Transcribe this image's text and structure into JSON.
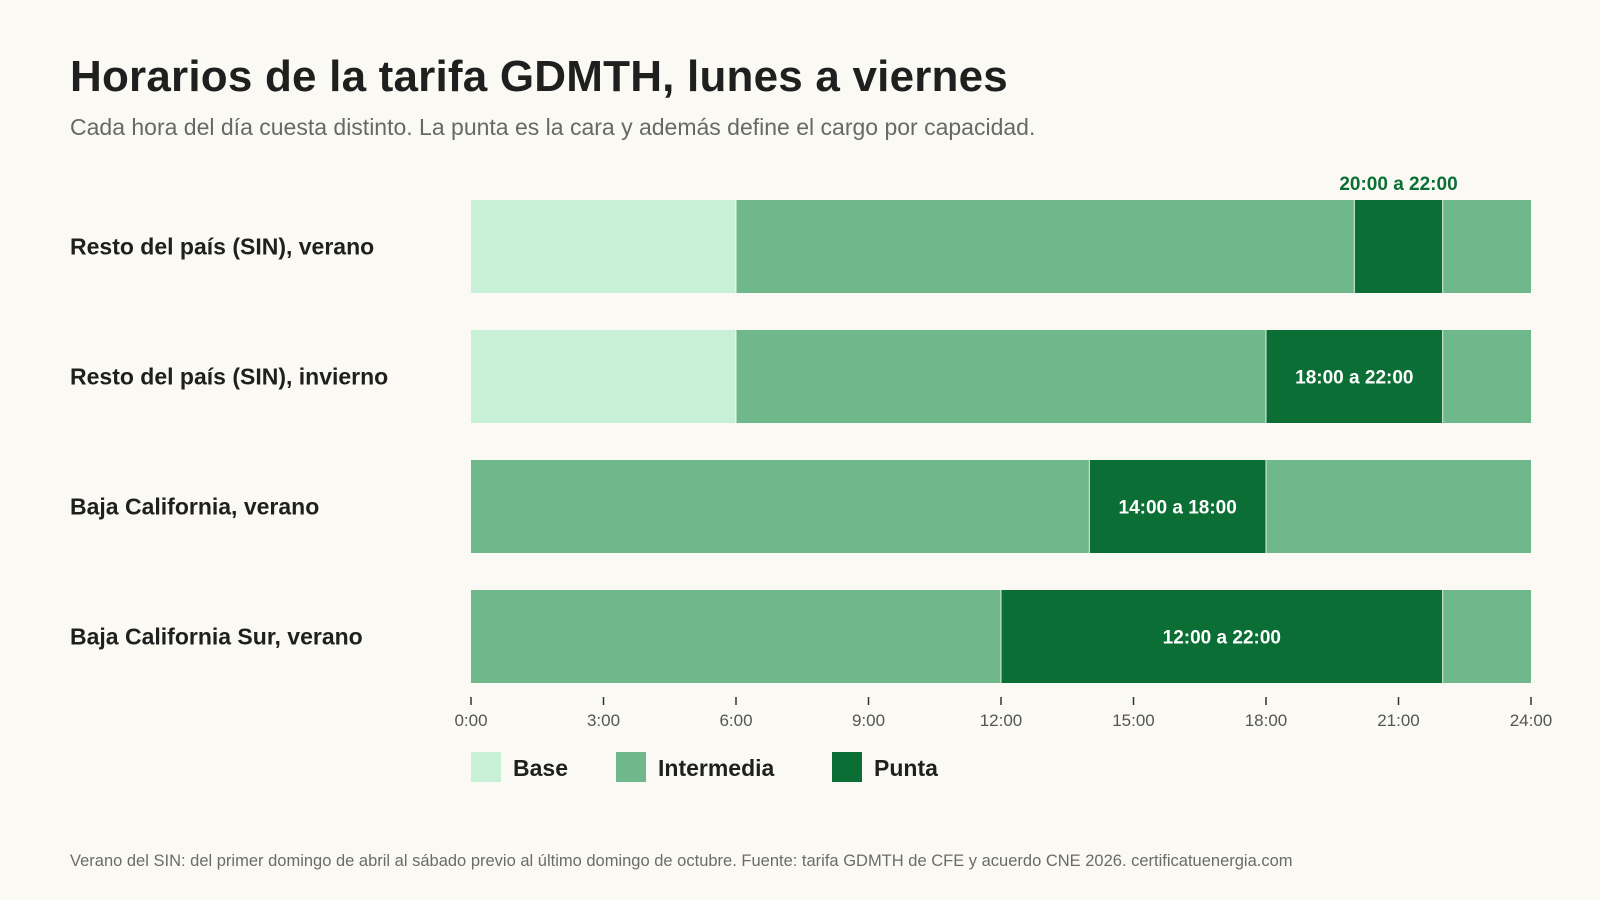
{
  "header": {
    "title": "Horarios de la tarifa GDMTH, lunes a viernes",
    "subtitle": "Cada hora del día cuesta distinto. La punta es la cara y además define el cargo por capacidad."
  },
  "footer": {
    "note": "Verano del SIN: del primer domingo de abril al sábado previo al último domingo de octubre. Fuente: tarifa GDMTH de CFE y acuerdo CNE 2026.  certificatuenergia.com"
  },
  "chart_data": {
    "type": "bar",
    "orientation": "horizontal-stacked-timeline",
    "title": "Horarios de la tarifa GDMTH, lunes a viernes",
    "subtitle": "Cada hora del día cuesta distinto. La punta es la cara y además define el cargo por capacidad.",
    "xlim": [
      0,
      24
    ],
    "x_ticks": [
      0,
      3,
      6,
      9,
      12,
      15,
      18,
      21,
      24
    ],
    "x_tick_labels": [
      "0:00",
      "3:00",
      "6:00",
      "9:00",
      "12:00",
      "15:00",
      "18:00",
      "21:00",
      "24:00"
    ],
    "grid": false,
    "legend_position": "bottom-left",
    "legend": [
      {
        "key": "base",
        "label": "Base",
        "color": "#c8f0d6"
      },
      {
        "key": "intermedia",
        "label": "Intermedia",
        "color": "#6fb88b"
      },
      {
        "key": "punta",
        "label": "Punta",
        "color": "#0b6e35"
      }
    ],
    "rows": [
      {
        "label": "Resto del país (SIN), verano",
        "segments": [
          {
            "category": "base",
            "start": 0,
            "end": 6
          },
          {
            "category": "intermedia",
            "start": 6,
            "end": 20
          },
          {
            "category": "punta",
            "start": 20,
            "end": 22,
            "annotation": "20:00 a 22:00",
            "annotation_position": "above"
          },
          {
            "category": "intermedia",
            "start": 22,
            "end": 24
          }
        ]
      },
      {
        "label": "Resto del país (SIN), invierno",
        "segments": [
          {
            "category": "base",
            "start": 0,
            "end": 6
          },
          {
            "category": "intermedia",
            "start": 6,
            "end": 18
          },
          {
            "category": "punta",
            "start": 18,
            "end": 22,
            "annotation": "18:00 a 22:00",
            "annotation_position": "inside"
          },
          {
            "category": "intermedia",
            "start": 22,
            "end": 24
          }
        ]
      },
      {
        "label": "Baja California, verano",
        "segments": [
          {
            "category": "intermedia",
            "start": 0,
            "end": 14
          },
          {
            "category": "punta",
            "start": 14,
            "end": 18,
            "annotation": "14:00 a 18:00",
            "annotation_position": "inside"
          },
          {
            "category": "intermedia",
            "start": 18,
            "end": 24
          }
        ]
      },
      {
        "label": "Baja California Sur, verano",
        "segments": [
          {
            "category": "intermedia",
            "start": 0,
            "end": 12
          },
          {
            "category": "punta",
            "start": 12,
            "end": 22,
            "annotation": "12:00 a 22:00",
            "annotation_position": "inside"
          },
          {
            "category": "intermedia",
            "start": 22,
            "end": 24
          }
        ]
      }
    ]
  }
}
